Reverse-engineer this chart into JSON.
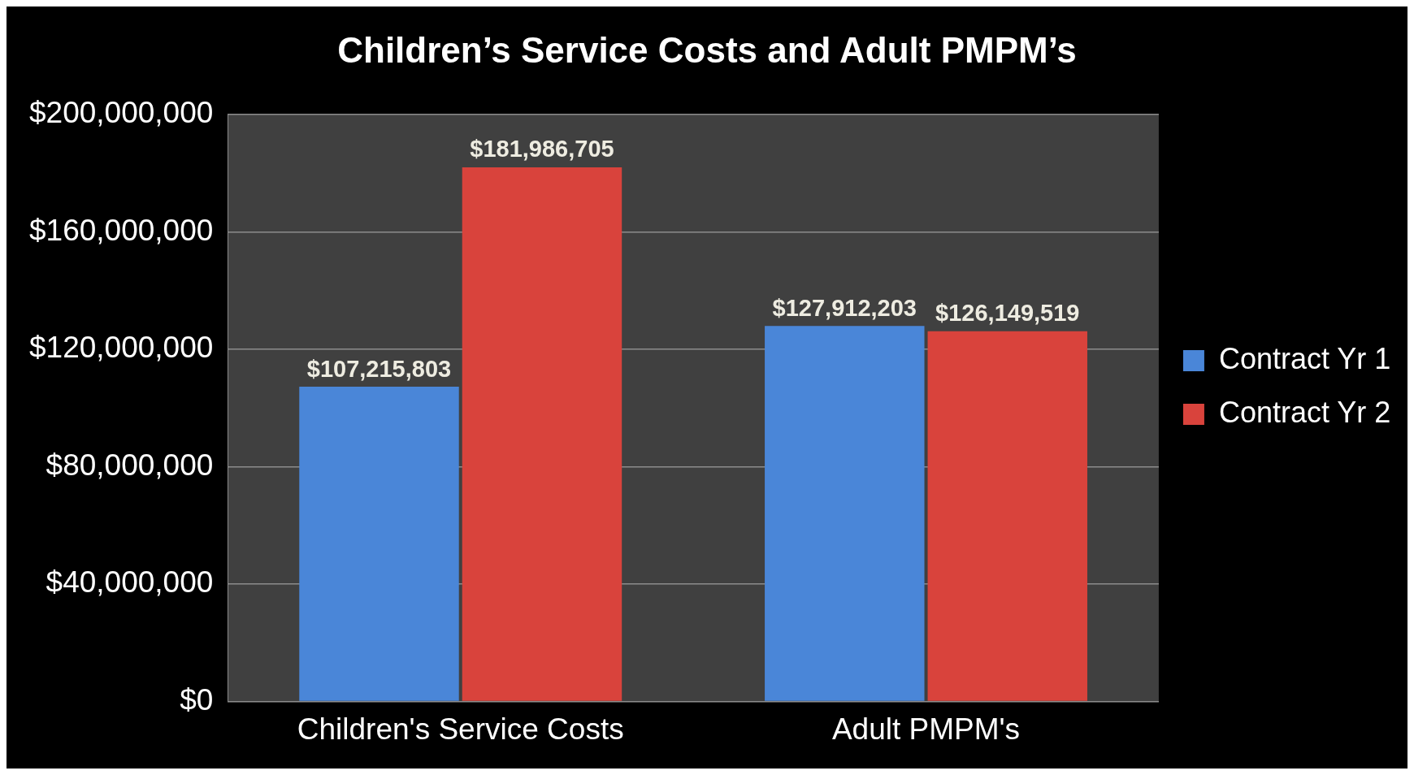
{
  "chart_data": {
    "type": "bar",
    "title": "Children’s Service Costs and Adult PMPM’s",
    "categories": [
      "Children's Service Costs",
      "Adult PMPM's"
    ],
    "series": [
      {
        "name": "Contract Yr 1",
        "color": "#4a86d8",
        "values": [
          107215803,
          127912203
        ],
        "value_labels": [
          "$107,215,803",
          "$127,912,203"
        ]
      },
      {
        "name": "Contract Yr 2",
        "color": "#d9433c",
        "values": [
          181986705,
          126149519
        ],
        "value_labels": [
          "$181,986,705",
          "$126,149,519"
        ]
      }
    ],
    "ylim": [
      0,
      200000000
    ],
    "yticks": [
      {
        "value": 0,
        "label": "$0"
      },
      {
        "value": 40000000,
        "label": "$40,000,000"
      },
      {
        "value": 80000000,
        "label": "$80,000,000"
      },
      {
        "value": 120000000,
        "label": "$120,000,000"
      },
      {
        "value": 160000000,
        "label": "$160,000,000"
      },
      {
        "value": 200000000,
        "label": "$200,000,000"
      }
    ],
    "grid": "y",
    "legend": "right"
  }
}
